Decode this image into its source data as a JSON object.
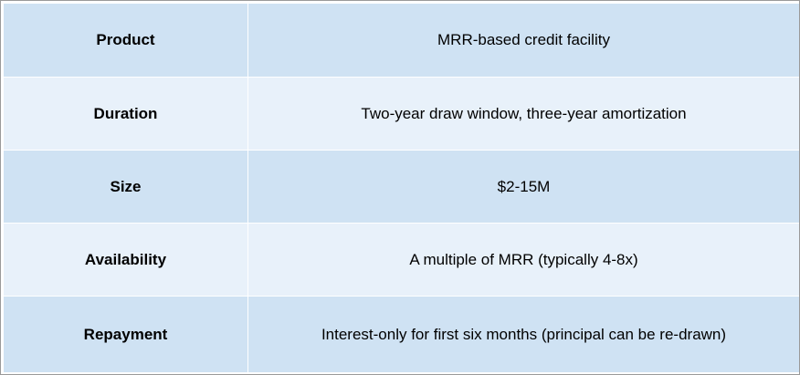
{
  "rows": [
    {
      "label": "Product",
      "value": "MRR-based credit facility"
    },
    {
      "label": "Duration",
      "value": "Two-year draw window, three-year amortization"
    },
    {
      "label": "Size",
      "value": "$2-15M"
    },
    {
      "label": "Availability",
      "value": "A multiple of MRR (typically 4-8x)"
    },
    {
      "label": "Repayment",
      "value": "Interest-only for first six months (principal can be re-drawn)"
    }
  ],
  "colors": {
    "row_dark": "#cfe2f3",
    "row_light": "#e8f1fa",
    "border": "#9a9a9a"
  }
}
